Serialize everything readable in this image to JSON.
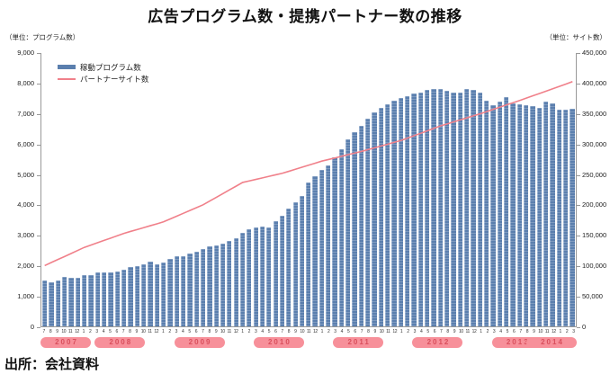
{
  "chart_data": {
    "type": "bar",
    "title": "広告プログラム数・提携パートナー数の推移",
    "grid": false,
    "legend_position": "top-left-inside",
    "period": {
      "start": "2007-07",
      "end": "2014-03"
    },
    "left_axis": {
      "unit": "（単位：プログラム数）",
      "min": 0,
      "max": 9000,
      "step": 1000,
      "ticks": [
        {
          "v": 9000,
          "label": "9,000"
        },
        {
          "v": 8000,
          "label": "8,000"
        },
        {
          "v": 7000,
          "label": "7,000"
        },
        {
          "v": 6000,
          "label": "6,000"
        },
        {
          "v": 5000,
          "label": "5,000"
        },
        {
          "v": 4000,
          "label": "4,000"
        },
        {
          "v": 3000,
          "label": "3,000"
        },
        {
          "v": 2000,
          "label": "2,000"
        },
        {
          "v": 1000,
          "label": "1,000"
        },
        {
          "v": 0,
          "label": "0"
        }
      ]
    },
    "right_axis": {
      "unit": "（単位：サイト数）",
      "min": 0,
      "max": 450000,
      "step": 50000,
      "ticks": [
        {
          "v": 450000,
          "label": "450,000"
        },
        {
          "v": 400000,
          "label": "400,000"
        },
        {
          "v": 350000,
          "label": "350,000"
        },
        {
          "v": 300000,
          "label": "300,000"
        },
        {
          "v": 250000,
          "label": "250,000"
        },
        {
          "v": 200000,
          "label": "200,000"
        },
        {
          "v": 150000,
          "label": "150,000"
        },
        {
          "v": 100000,
          "label": "100,000"
        },
        {
          "v": 50000,
          "label": "50,000"
        },
        {
          "v": 0,
          "label": "0"
        }
      ]
    },
    "month_labels": [
      "7",
      "8",
      "9",
      "10",
      "11",
      "12",
      "1",
      "2",
      "3",
      "4",
      "5",
      "6",
      "7",
      "8",
      "9",
      "10",
      "11",
      "12",
      "1",
      "2",
      "3",
      "4",
      "5",
      "6",
      "7",
      "8",
      "9",
      "10",
      "11",
      "12",
      "1",
      "2",
      "3",
      "4",
      "5",
      "6",
      "7",
      "8",
      "9",
      "10",
      "11",
      "12",
      "1",
      "2",
      "3",
      "4",
      "5",
      "6",
      "7",
      "8",
      "9",
      "10",
      "11",
      "12",
      "1",
      "2",
      "3",
      "4",
      "5",
      "6",
      "7",
      "8",
      "9",
      "10",
      "11",
      "12",
      "1",
      "2",
      "3",
      "4",
      "5",
      "6",
      "7",
      "8",
      "9",
      "10",
      "11",
      "12",
      "1",
      "2",
      "3"
    ],
    "years": [
      {
        "label": "2007",
        "start": 0,
        "count": 6
      },
      {
        "label": "2008",
        "start": 6,
        "count": 12
      },
      {
        "label": "2009",
        "start": 18,
        "count": 12
      },
      {
        "label": "2010",
        "start": 30,
        "count": 12
      },
      {
        "label": "2011",
        "start": 42,
        "count": 12
      },
      {
        "label": "2012",
        "start": 54,
        "count": 12
      },
      {
        "label": "2013",
        "start": 66,
        "count": 12
      },
      {
        "label": "2014",
        "start": 78,
        "count": 3
      }
    ],
    "series": [
      {
        "name": "稼動プログラム数",
        "type": "bar",
        "axis": "left",
        "values": [
          1500,
          1450,
          1520,
          1620,
          1600,
          1600,
          1690,
          1690,
          1770,
          1790,
          1770,
          1810,
          1870,
          1940,
          1990,
          2040,
          2130,
          2040,
          2100,
          2230,
          2300,
          2320,
          2400,
          2470,
          2550,
          2630,
          2660,
          2720,
          2820,
          2900,
          3070,
          3200,
          3260,
          3280,
          3250,
          3460,
          3650,
          3870,
          4080,
          4300,
          4740,
          4950,
          5150,
          5310,
          5570,
          5820,
          6160,
          6410,
          6610,
          6850,
          7050,
          7200,
          7310,
          7440,
          7510,
          7590,
          7670,
          7690,
          7790,
          7810,
          7830,
          7770,
          7690,
          7710,
          7810,
          7790,
          7710,
          7440,
          7290,
          7390,
          7540,
          7340,
          7310,
          7290,
          7240,
          7190,
          7410,
          7340,
          7140,
          7140,
          7170
        ]
      },
      {
        "name": "パートナーサイト数",
        "type": "line",
        "axis": "right",
        "values": [
          100000,
          105000,
          110000,
          115000,
          120000,
          125000,
          130000,
          133800,
          137700,
          141500,
          145300,
          149200,
          153000,
          156200,
          159300,
          162500,
          165700,
          168800,
          172000,
          176700,
          181300,
          186000,
          190700,
          195300,
          200000,
          206200,
          212300,
          218500,
          224700,
          230800,
          237000,
          239500,
          242000,
          244500,
          247000,
          249500,
          252000,
          255300,
          258700,
          262000,
          265300,
          268700,
          272000,
          274700,
          277300,
          280000,
          282700,
          285300,
          288000,
          291000,
          294000,
          297000,
          300000,
          303000,
          306000,
          310000,
          314000,
          318000,
          322000,
          326000,
          330000,
          333300,
          336700,
          340000,
          343300,
          346700,
          350000,
          353700,
          357300,
          361000,
          364700,
          368300,
          372000,
          375800,
          379700,
          383500,
          387300,
          391200,
          395000,
          399000,
          403000
        ]
      }
    ]
  },
  "source": "出所：会社資料",
  "colors": {
    "bar": "#5b7fae",
    "bar_highlight": "#8fa9cb",
    "line": "#f0808a",
    "axis": "#999999",
    "year_badge_bg": "#f7909a",
    "year_badge_text": "#d94f5c"
  }
}
